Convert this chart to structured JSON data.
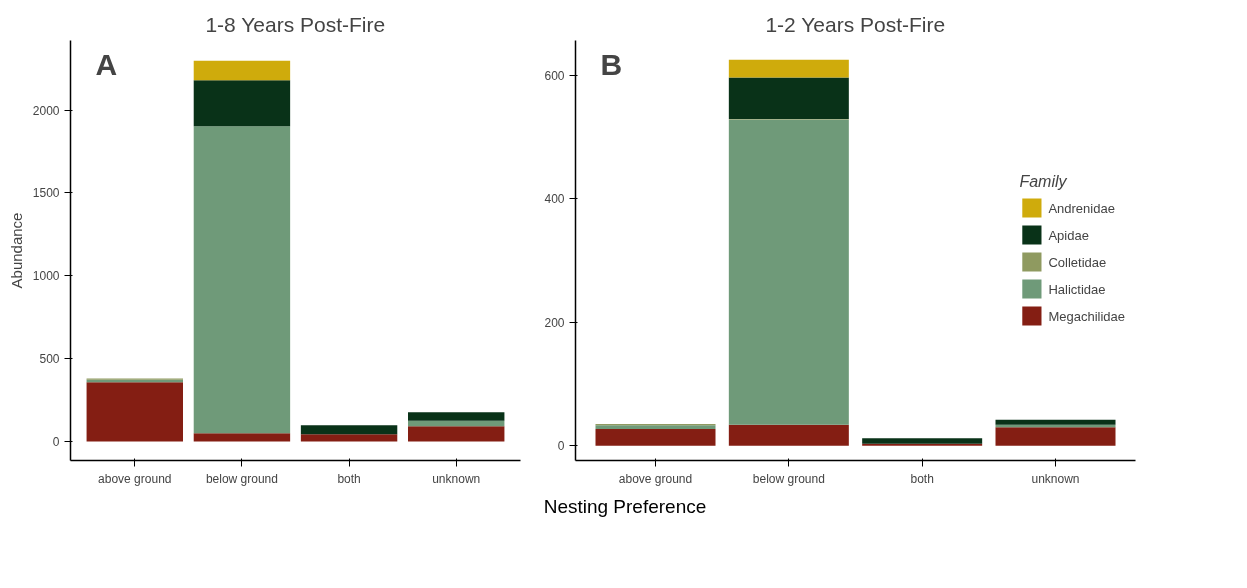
{
  "chart_data": [
    {
      "type": "bar",
      "title": "1-8 Years Post-Fire",
      "ylabel": "Abundance",
      "xlabel": "Nesting Preference",
      "annotations": [
        "A"
      ],
      "stacked": true,
      "categories": [
        "above ground",
        "below ground",
        "both",
        "unknown"
      ],
      "ylim": [
        -115,
        2420
      ],
      "yticks": [
        0,
        500,
        1000,
        1500,
        2000
      ],
      "series": [
        {
          "color": "#841e13",
          "values": [
            357,
            49,
            43,
            92
          ]
        },
        {
          "color": "#6f9a79",
          "values": [
            15,
            1853,
            null,
            33
          ]
        },
        {
          "color": "#8f9a60",
          "values": [
            8,
            null,
            null,
            null
          ]
        },
        {
          "color": "#093218",
          "values": [
            null,
            278,
            55,
            51
          ]
        },
        {
          "color": "#cfab0c",
          "values": [
            null,
            118,
            null,
            null
          ]
        }
      ]
    },
    {
      "type": "bar",
      "title": "1-2 Years Post-Fire",
      "annotations": [
        "B"
      ],
      "stacked": true,
      "legend": "right",
      "legend_title": "Family",
      "categories": [
        "above ground",
        "below ground",
        "both",
        "unknown"
      ],
      "ylim": [
        -24,
        656
      ],
      "yticks": [
        0,
        200,
        400,
        600
      ],
      "series": [
        {
          "name": "Megachilidae",
          "color": "#841e13",
          "values": [
            27,
            34,
            3,
            30
          ]
        },
        {
          "name": "Halictidae",
          "color": "#6f9a79",
          "values": [
            6,
            494,
            null,
            4
          ]
        },
        {
          "name": "Colletidae",
          "color": "#8f9a60",
          "values": [
            2,
            1,
            null,
            null
          ]
        },
        {
          "name": "Apidae",
          "color": "#093218",
          "values": [
            null,
            67,
            9,
            8
          ]
        },
        {
          "name": "Andrenidae",
          "color": "#cfab0c",
          "values": [
            null,
            29,
            null,
            null
          ]
        }
      ]
    }
  ]
}
